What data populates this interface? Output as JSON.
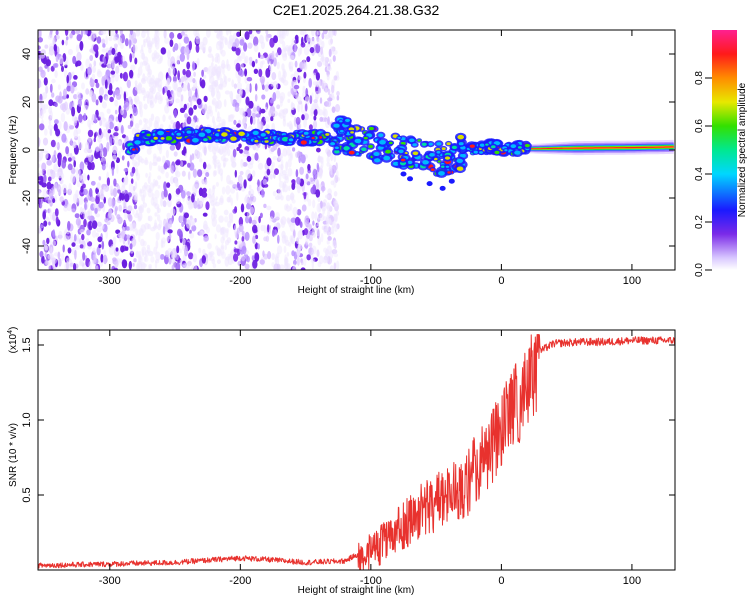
{
  "figure": {
    "title": "C2E1.2025.264.21.38.G32"
  },
  "chart_data": [
    {
      "type": "heatmap",
      "title": "C2E1.2025.264.21.38.G32",
      "xlabel": "Height of straight line (km)",
      "ylabel": "Frequency (Hz)",
      "xlim": [
        -355,
        133
      ],
      "ylim": [
        -50,
        50
      ],
      "xticks": [
        -300,
        -200,
        -100,
        0,
        100
      ],
      "yticks": [
        -40,
        -20,
        0,
        20,
        40
      ],
      "colorbar": {
        "label": "Normalized spectral amplitude",
        "range": [
          0,
          1
        ],
        "ticks": [
          "0.0",
          "0.2",
          "0.4",
          "0.6",
          "0.8"
        ],
        "tick_values": [
          0,
          0.2,
          0.4,
          0.6,
          0.8
        ],
        "colormap": "white-violet-blue-cyan-green-yellow-red-magenta"
      },
      "ridge": {
        "description": "dominant frequency ridge vs height",
        "x": [
          -280,
          -240,
          -210,
          -180,
          -150,
          -125,
          -110,
          -95,
          -80,
          -65,
          -50,
          -40,
          -30,
          -20,
          -10,
          0,
          20,
          60,
          100,
          133
        ],
        "y": [
          5,
          6,
          6,
          5.5,
          5,
          6,
          5,
          2,
          0,
          -2,
          -3,
          -3,
          -1,
          1,
          1,
          0.5,
          0.5,
          0.8,
          1,
          1.3
        ]
      },
      "noise_region": {
        "x_range": [
          -355,
          -125
        ],
        "y_range": [
          -50,
          50
        ]
      }
    },
    {
      "type": "line",
      "xlabel": "Height of straight line (km)",
      "ylabel": "SNR (10 * v/v)",
      "y_multiplier": "(x10",
      "y_multiplier_exp": "4",
      "y_multiplier_close": ")",
      "xlim": [
        -355,
        133
      ],
      "ylim": [
        0,
        16000
      ],
      "xticks": [
        -300,
        -200,
        -100,
        0,
        100
      ],
      "yticks": [
        5000,
        10000,
        15000
      ],
      "ytick_labels": [
        "0.5",
        "1.0",
        "1.5"
      ],
      "series": [
        {
          "name": "SNR",
          "color": "#e8322e",
          "x": [
            -355,
            -300,
            -250,
            -200,
            -180,
            -150,
            -120,
            -100,
            -80,
            -60,
            -40,
            -25,
            -10,
            0,
            10,
            20,
            30,
            40,
            60,
            80,
            100,
            133
          ],
          "y": [
            300,
            400,
            500,
            800,
            700,
            500,
            600,
            1500,
            3000,
            4500,
            5500,
            6500,
            8500,
            10000,
            11500,
            13000,
            14600,
            15100,
            15200,
            15200,
            15300,
            15300
          ]
        }
      ]
    }
  ],
  "colors": {
    "line": "#e8322e",
    "axis": "#000000",
    "ridge_core": "#ff1a1a",
    "noise": "#7a2ae8"
  }
}
